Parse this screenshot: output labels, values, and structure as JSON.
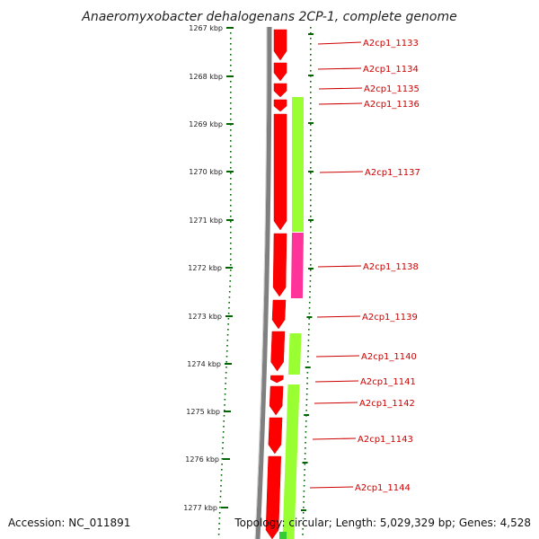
{
  "title": "Anaeromyxobacter dehalogenans 2CP-1, complete genome",
  "footer": {
    "accession": "Accession: NC_011891",
    "summary": "Topology: circular; Length: 5,029,329 bp; Genes: 4,528"
  },
  "ruler": {
    "ticks": [
      "1267 kbp",
      "1268 kbp",
      "1269 kbp",
      "1270 kbp",
      "1271 kbp",
      "1272 kbp",
      "1273 kbp",
      "1274 kbp",
      "1275 kbp",
      "1276 kbp",
      "1277 kbp"
    ]
  },
  "genes": [
    {
      "label": "A2cp1_1133"
    },
    {
      "label": "A2cp1_1134"
    },
    {
      "label": "A2cp1_1135"
    },
    {
      "label": "A2cp1_1136"
    },
    {
      "label": "A2cp1_1137"
    },
    {
      "label": "A2cp1_1138"
    },
    {
      "label": "A2cp1_1139"
    },
    {
      "label": "A2cp1_1140"
    },
    {
      "label": "A2cp1_1141"
    },
    {
      "label": "A2cp1_1142"
    },
    {
      "label": "A2cp1_1143"
    },
    {
      "label": "A2cp1_1144"
    }
  ],
  "colors": {
    "cds": "#ff0000",
    "gene": "#99ff33",
    "feature": "#ff3399",
    "backbone": "#808080",
    "ruler": "#006600",
    "label": "#cc0000"
  }
}
